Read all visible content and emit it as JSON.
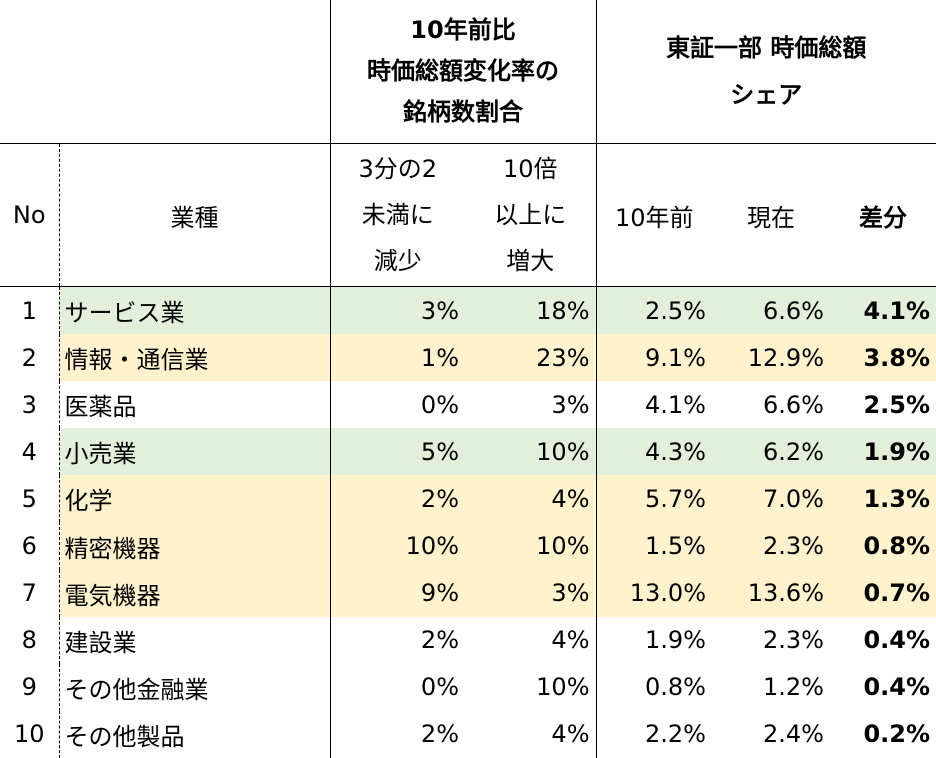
{
  "header": {
    "group1_line1": "10年前比",
    "group1_line2": "時価総額変化率の",
    "group1_line3": "銘柄数割合",
    "group2_line1": "東証一部 時価総額",
    "group2_line2": "シェア",
    "no": "No",
    "industry": "業種",
    "decrease_line1": "3分の2",
    "decrease_line2": "未満に",
    "decrease_line3": "減少",
    "increase_line1": "10倍",
    "increase_line2": "以上に",
    "increase_line3": "増大",
    "ten_years_ago": "10年前",
    "current": "現在",
    "difference": "差分"
  },
  "colors": {
    "green_highlight": "#e2efda",
    "yellow_highlight": "#fff2cc"
  },
  "rows": [
    {
      "no": "1",
      "industry": "サービス業",
      "decrease": "3%",
      "increase": "18%",
      "before": "2.5%",
      "now": "6.6%",
      "diff": "4.1%",
      "highlight": "green"
    },
    {
      "no": "2",
      "industry": "情報・通信業",
      "decrease": "1%",
      "increase": "23%",
      "before": "9.1%",
      "now": "12.9%",
      "diff": "3.8%",
      "highlight": "yellow"
    },
    {
      "no": "3",
      "industry": "医薬品",
      "decrease": "0%",
      "increase": "3%",
      "before": "4.1%",
      "now": "6.6%",
      "diff": "2.5%",
      "highlight": "none"
    },
    {
      "no": "4",
      "industry": "小売業",
      "decrease": "5%",
      "increase": "10%",
      "before": "4.3%",
      "now": "6.2%",
      "diff": "1.9%",
      "highlight": "green"
    },
    {
      "no": "5",
      "industry": "化学",
      "decrease": "2%",
      "increase": "4%",
      "before": "5.7%",
      "now": "7.0%",
      "diff": "1.3%",
      "highlight": "yellow"
    },
    {
      "no": "6",
      "industry": "精密機器",
      "decrease": "10%",
      "increase": "10%",
      "before": "1.5%",
      "now": "2.3%",
      "diff": "0.8%",
      "highlight": "yellow"
    },
    {
      "no": "7",
      "industry": "電気機器",
      "decrease": "9%",
      "increase": "3%",
      "before": "13.0%",
      "now": "13.6%",
      "diff": "0.7%",
      "highlight": "yellow"
    },
    {
      "no": "8",
      "industry": "建設業",
      "decrease": "2%",
      "increase": "4%",
      "before": "1.9%",
      "now": "2.3%",
      "diff": "0.4%",
      "highlight": "none"
    },
    {
      "no": "9",
      "industry": "その他金融業",
      "decrease": "0%",
      "increase": "10%",
      "before": "0.8%",
      "now": "1.2%",
      "diff": "0.4%",
      "highlight": "none"
    },
    {
      "no": "10",
      "industry": "その他製品",
      "decrease": "2%",
      "increase": "4%",
      "before": "2.2%",
      "now": "2.4%",
      "diff": "0.2%",
      "highlight": "none"
    }
  ]
}
